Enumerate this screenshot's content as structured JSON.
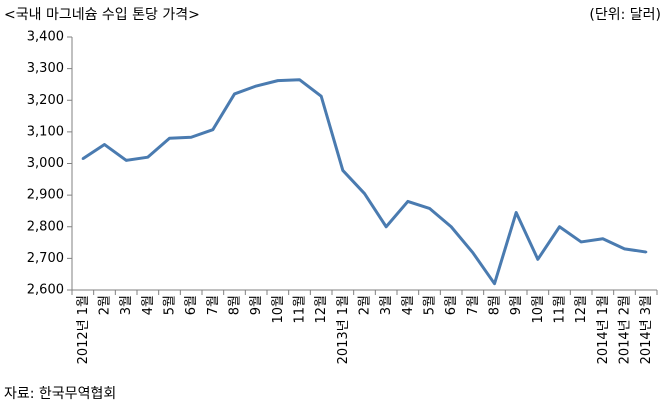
{
  "chart_data": {
    "type": "line",
    "title": "<국내 마그네슘 수입 톤당 가격>",
    "unit_label": "(단위: 달러)",
    "source": "자료: 한국무역협회",
    "categories": [
      "2012년 1월",
      "2월",
      "3월",
      "4월",
      "5월",
      "6월",
      "7월",
      "8월",
      "9월",
      "10월",
      "11월",
      "12월",
      "2013년 1월",
      "2월",
      "3월",
      "4월",
      "5월",
      "6월",
      "7월",
      "8월",
      "9월",
      "10월",
      "11월",
      "12월",
      "2014년 1월",
      "2014년 2월",
      "2014년 3월"
    ],
    "series": [
      {
        "values": [
          3015,
          3060,
          3010,
          3020,
          3080,
          3083,
          3107,
          3220,
          3245,
          3262,
          3265,
          3213,
          2978,
          2905,
          2800,
          2880,
          2858,
          2800,
          2718,
          2620,
          2845,
          2697,
          2800,
          2752,
          2762,
          2730,
          2720
        ],
        "color": "#4A7BB0"
      }
    ],
    "yticks": [
      "2,600",
      "2,700",
      "2,800",
      "2,900",
      "3,000",
      "3,100",
      "3,200",
      "3,300",
      "3,400"
    ],
    "ylim": [
      2600,
      3400
    ],
    "grid": false,
    "legend": "none"
  }
}
